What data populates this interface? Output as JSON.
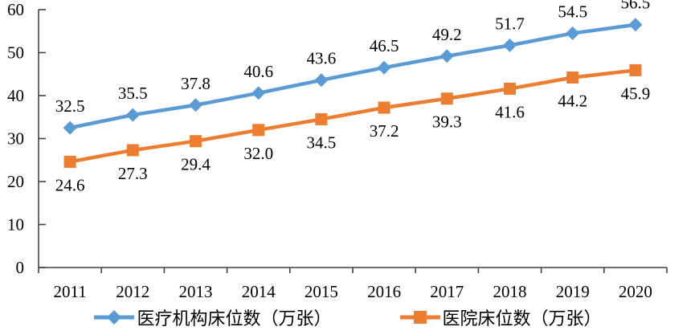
{
  "chart_data": {
    "type": "line",
    "title": "",
    "xlabel": "",
    "ylabel": "",
    "categories": [
      "2011",
      "2012",
      "2013",
      "2014",
      "2015",
      "2016",
      "2017",
      "2018",
      "2019",
      "2020"
    ],
    "series": [
      {
        "name": "医疗机构床位数（万张）",
        "values": [
          32.5,
          35.5,
          37.8,
          40.6,
          43.6,
          46.5,
          49.2,
          51.7,
          54.5,
          56.5
        ],
        "color": "#5B9BD5",
        "marker": "diamond",
        "label_position": "above"
      },
      {
        "name": "医院床位数（万张）",
        "values": [
          24.6,
          27.3,
          29.4,
          32.0,
          34.5,
          37.2,
          39.3,
          41.6,
          44.2,
          45.9
        ],
        "color": "#ED7D31",
        "marker": "square",
        "label_position": "below"
      }
    ],
    "ylim": [
      0,
      60
    ],
    "ytick_step": 10,
    "yticks": [
      "0",
      "10",
      "20",
      "30",
      "40",
      "50",
      "60"
    ],
    "grid": false,
    "legend_position": "bottom",
    "axis_color": "#404040",
    "text_color": "#000000",
    "data_label_decimals": 1
  }
}
